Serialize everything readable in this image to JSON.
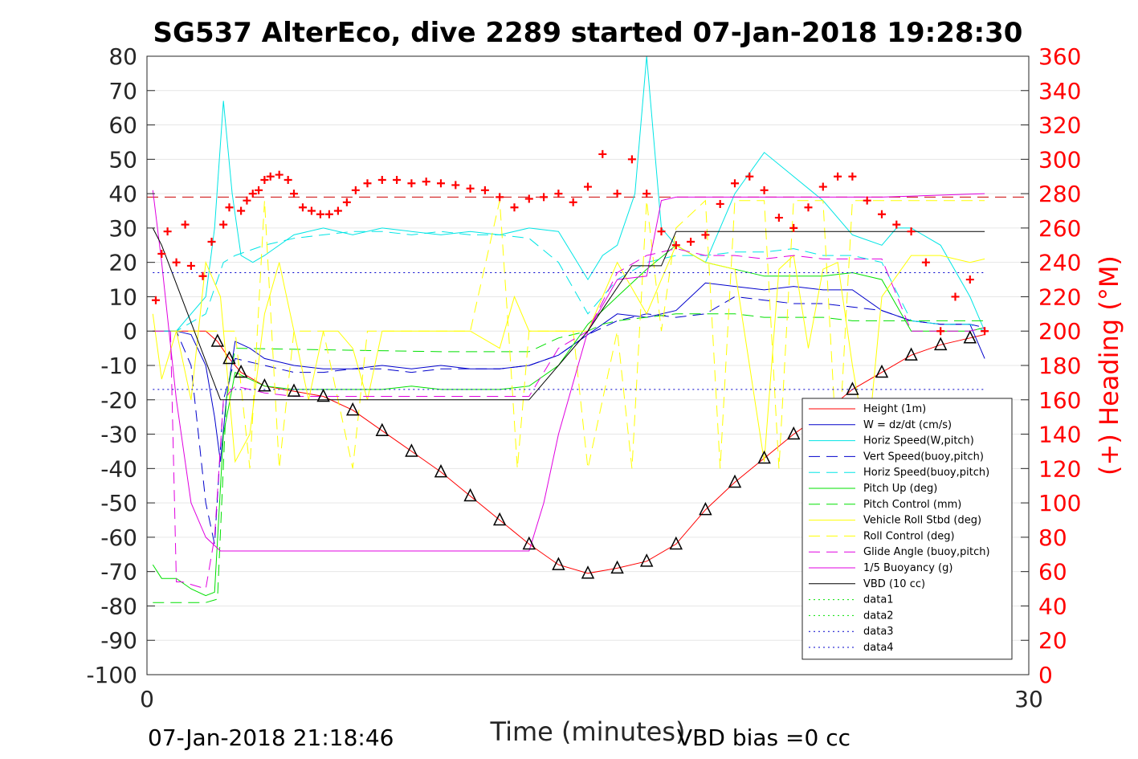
{
  "chart_data": {
    "type": "line",
    "title": "SG537 AlterEco, dive 2289 started 07-Jan-2018 19:28:30",
    "xlabel": "Time (minutes)",
    "ylabel_right": "(+) Heading (°M)",
    "xlim": [
      0,
      30
    ],
    "ylim_left": [
      -100,
      80
    ],
    "ylim_right": [
      0,
      360
    ],
    "x_ticks": [
      "0",
      "30"
    ],
    "y_ticks_left": [
      "80",
      "70",
      "60",
      "50",
      "40",
      "30",
      "20",
      "10",
      "0",
      "-10",
      "-20",
      "-30",
      "-40",
      "-50",
      "-60",
      "-70",
      "-80",
      "-90",
      "-100"
    ],
    "y_ticks_right": [
      "360",
      "340",
      "320",
      "300",
      "280",
      "260",
      "240",
      "220",
      "200",
      "180",
      "160",
      "140",
      "120",
      "100",
      "80",
      "60",
      "40",
      "20",
      "0"
    ],
    "grid": true,
    "legend_position": "lower-right",
    "footer_left": "07-Jan-2018 21:18:46",
    "footer_right": "VBD bias =0 cc",
    "series": [
      {
        "name": "Height (1m)",
        "color": "#ff0000",
        "style": "solid",
        "x": [
          0.2,
          2,
          2.4,
          2.8,
          3.2,
          4,
          5,
          6,
          7,
          8,
          9,
          10,
          11,
          12,
          13,
          14,
          15,
          16,
          17,
          18,
          19,
          20,
          21,
          22,
          23,
          24,
          25,
          26,
          27,
          28,
          28.5
        ],
        "y": [
          0,
          0,
          -3,
          -8,
          -12,
          -16,
          -17.5,
          -19,
          -23,
          -29,
          -35,
          -41,
          -48,
          -55,
          -62,
          -68,
          -70.5,
          -69,
          -67,
          -62,
          -52,
          -44,
          -37,
          -30,
          -24,
          -17,
          -12,
          -7,
          -4,
          -2,
          -1
        ]
      },
      {
        "name": "W = dz/dt (cm/s)",
        "color": "#0000cc",
        "style": "solid",
        "x": [
          0.2,
          1,
          1.5,
          2,
          2.3,
          2.5,
          2.7,
          3,
          3.5,
          4,
          5,
          6,
          7,
          8,
          9,
          10,
          11,
          12,
          13,
          14,
          15,
          15.5,
          16,
          17,
          18,
          19,
          20,
          21,
          22,
          23,
          24,
          25,
          26,
          27,
          28,
          28.5
        ],
        "y": [
          0,
          0,
          -1,
          -10,
          -25,
          -38,
          -20,
          -3,
          -5,
          -8,
          -10,
          -11,
          -11,
          -10,
          -11,
          -10,
          -11,
          -11,
          -10,
          -7,
          -1,
          2,
          5,
          4,
          6,
          14,
          13,
          12,
          13,
          12,
          12,
          6,
          3,
          2,
          2,
          -8
        ]
      },
      {
        "name": "Horiz Speed(W,pitch)",
        "color": "#00e5e5",
        "style": "solid",
        "x": [
          0.2,
          1,
          2,
          2.3,
          2.6,
          2.9,
          3.2,
          3.6,
          4,
          5,
          6,
          7,
          8,
          9,
          10,
          11,
          12,
          13,
          14,
          15,
          15.5,
          16,
          16.6,
          17,
          17.5,
          18,
          19,
          20,
          21,
          22,
          23,
          24,
          25,
          25.5,
          26,
          27,
          28,
          28.5
        ],
        "y": [
          0,
          0,
          10,
          30,
          67,
          40,
          22,
          20,
          22,
          28,
          30,
          28,
          30,
          29,
          28,
          29,
          28,
          30,
          29,
          15,
          22,
          25,
          40,
          80,
          30,
          25,
          20,
          40,
          52,
          45,
          38,
          28,
          25,
          30,
          30,
          25,
          10,
          0
        ]
      },
      {
        "name": "Vert Speed(buoy,pitch)",
        "color": "#0000cc",
        "style": "dashed",
        "x": [
          0.2,
          1,
          1.5,
          2,
          2.3,
          2.6,
          3,
          4,
          5,
          6,
          7,
          8,
          9,
          10,
          11,
          12,
          13,
          14,
          15,
          16,
          17,
          18,
          19,
          20,
          21,
          22,
          23,
          24,
          25,
          26,
          27,
          28,
          28.5
        ],
        "y": [
          0,
          0,
          -10,
          -50,
          -62,
          -20,
          -8,
          -10,
          -12,
          -12,
          -11,
          -11,
          -12,
          -11,
          -11,
          -11,
          -10,
          -7,
          -1,
          3,
          5,
          4,
          5,
          10,
          9,
          8,
          8,
          7,
          6,
          3,
          2,
          2,
          1
        ]
      },
      {
        "name": "Horiz Speed(buoy,pitch)",
        "color": "#00e5e5",
        "style": "dashed",
        "x": [
          0.2,
          1,
          2,
          2.6,
          3,
          4,
          5,
          6,
          7,
          8,
          9,
          10,
          11,
          12,
          13,
          14,
          15,
          16,
          17,
          18,
          19,
          20,
          21,
          22,
          23,
          24,
          25,
          26,
          27,
          28,
          28.5
        ],
        "y": [
          0,
          0,
          5,
          20,
          22,
          25,
          27,
          28,
          29,
          29,
          28,
          29,
          28,
          28,
          27,
          20,
          5,
          15,
          20,
          22,
          22,
          23,
          23,
          24,
          22,
          22,
          20,
          3,
          2,
          2,
          0
        ]
      },
      {
        "name": "Pitch Up (deg)",
        "color": "#00e000",
        "style": "solid",
        "x": [
          0.2,
          0.5,
          1,
          1.5,
          2,
          2.3,
          2.6,
          3,
          3.5,
          4,
          5,
          6,
          7,
          8,
          9,
          10,
          11,
          12,
          13,
          14,
          15,
          16,
          17,
          18,
          19,
          20,
          21,
          22,
          23,
          24,
          25,
          26,
          27,
          28,
          28.5
        ],
        "y": [
          -68,
          -72,
          -72,
          -75,
          -77,
          -76,
          -30,
          -12,
          -14,
          -16,
          -17,
          -17,
          -17,
          -17,
          -16,
          -17,
          -17,
          -17,
          -16,
          -10,
          2,
          10,
          18,
          25,
          20,
          18,
          16,
          16,
          16,
          17,
          15,
          0,
          0,
          0,
          1
        ]
      },
      {
        "name": "Pitch Control (mm)",
        "color": "#00e000",
        "style": "dashed",
        "x": [
          0.2,
          2,
          2.4,
          2.7,
          3,
          10,
          12,
          13,
          13.5,
          14,
          15,
          15.5,
          16,
          18,
          20,
          21,
          22,
          23,
          24,
          25,
          26,
          28,
          28.5
        ],
        "y": [
          -79,
          -79,
          -78,
          -20,
          -5,
          -6,
          -6,
          -6,
          -4,
          -2,
          0,
          2,
          3,
          5,
          5,
          4,
          4,
          4,
          3,
          3,
          3,
          3,
          3
        ]
      },
      {
        "name": "Vehicle Roll Stbd (deg)",
        "color": "#ffff00",
        "style": "solid",
        "x": [
          0.2,
          0.5,
          1,
          1.5,
          2,
          2.5,
          3,
          3.5,
          4,
          4.5,
          5,
          5.5,
          6,
          6.5,
          7,
          7.5,
          8,
          9,
          10,
          11,
          12,
          12.5,
          13,
          13.5,
          14,
          15,
          16,
          17,
          18,
          19,
          20,
          20.5,
          21,
          21.5,
          22,
          22.5,
          23,
          23.5,
          24,
          24.5,
          25,
          26,
          27,
          28,
          28.5
        ],
        "y": [
          5,
          -14,
          0,
          -20,
          20,
          10,
          -38,
          -30,
          5,
          20,
          0,
          -20,
          0,
          0,
          -5,
          -20,
          0,
          0,
          0,
          0,
          -5,
          10,
          0,
          0,
          0,
          0,
          20,
          5,
          25,
          20,
          18,
          -10,
          -38,
          18,
          22,
          -5,
          18,
          20,
          -10,
          -35,
          10,
          22,
          22,
          20,
          21
        ]
      },
      {
        "name": "Roll Control (deg)",
        "color": "#ffff00",
        "style": "dashed",
        "x": [
          0.2,
          3,
          3.5,
          4,
          4.5,
          5,
          6,
          7,
          7.5,
          8,
          10,
          11,
          12,
          12.3,
          12.6,
          13,
          13.5,
          14,
          14.5,
          15,
          16,
          16.5,
          17,
          17.5,
          18,
          19,
          19.5,
          20,
          21,
          21.5,
          22,
          23,
          23.5,
          24,
          25,
          26,
          27,
          28,
          28.5
        ],
        "y": [
          0,
          0,
          -40,
          38,
          -40,
          0,
          0,
          -40,
          0,
          0,
          0,
          0,
          38,
          0,
          -40,
          0,
          0,
          0,
          0,
          -40,
          0,
          -40,
          38,
          0,
          30,
          38,
          -40,
          38,
          38,
          -40,
          38,
          38,
          -40,
          38,
          38,
          38,
          38,
          38,
          38
        ]
      },
      {
        "name": "Glide Angle (buoy,pitch)",
        "color": "#e000e0",
        "style": "dashed",
        "x": [
          0.2,
          0.8,
          1,
          1.2,
          2,
          2.3,
          2.6,
          3,
          4,
          5,
          6,
          7,
          8,
          9,
          10,
          11,
          12,
          13,
          14,
          15,
          16,
          17,
          18,
          19,
          20,
          21,
          22,
          23,
          24,
          25,
          26,
          27,
          28,
          28.5
        ],
        "y": [
          0,
          0,
          -73,
          -73,
          -75,
          -60,
          -20,
          -16,
          -18,
          -19,
          -19,
          -19,
          -19,
          -19,
          -19,
          -19,
          -19,
          -19,
          -5,
          0,
          17,
          22,
          24,
          22,
          22,
          21,
          22,
          21,
          21,
          21,
          0,
          0,
          0,
          1
        ]
      },
      {
        "name": "1/5 Buoyancy (g)",
        "color": "#e000e0",
        "style": "solid",
        "x": [
          0.2,
          0.5,
          1,
          1.5,
          2,
          2.5,
          13,
          13.5,
          14,
          15,
          16,
          17,
          17.5,
          18,
          20,
          25,
          28.5
        ],
        "y": [
          41,
          20,
          -20,
          -50,
          -60,
          -64,
          -64,
          -50,
          -30,
          0,
          15,
          16,
          38,
          39,
          39,
          39,
          40
        ]
      },
      {
        "name": "VBD (10 cc)",
        "color": "#000000",
        "style": "solid",
        "x": [
          0.2,
          0.5,
          2.5,
          13,
          15,
          16.5,
          17.5,
          18,
          28.5
        ],
        "y": [
          30,
          25,
          -20,
          -20,
          0,
          19,
          19,
          29,
          29
        ]
      },
      {
        "name": "data1",
        "color": "#00e000",
        "style": "dotted",
        "x": [],
        "y": []
      },
      {
        "name": "data2",
        "color": "#00e000",
        "style": "dotted",
        "x": [],
        "y": []
      },
      {
        "name": "data3",
        "color": "#0000cc",
        "style": "dotted",
        "x": [
          0.2,
          28.5
        ],
        "y": [
          17,
          17
        ]
      },
      {
        "name": "data4",
        "color": "#0000cc",
        "style": "dotted",
        "x": [
          0.2,
          28.5
        ],
        "y": [
          -17,
          -17
        ]
      }
    ],
    "heading_target": {
      "color": "#cc0000",
      "style": "dashed",
      "y_right": 278
    },
    "heading_points": {
      "color": "#ff0000",
      "marker": "+",
      "x": [
        0.3,
        0.5,
        0.7,
        1,
        1.3,
        1.5,
        1.9,
        2.2,
        2.6,
        2.8,
        3.2,
        3.4,
        3.6,
        3.8,
        4,
        4.2,
        4.5,
        4.8,
        5,
        5.3,
        5.6,
        5.9,
        6.2,
        6.5,
        6.8,
        7.1,
        7.5,
        8,
        8.5,
        9,
        9.5,
        10,
        10.5,
        11,
        11.5,
        12,
        12.5,
        13,
        13.5,
        14,
        14.5,
        15,
        15.5,
        16,
        16.5,
        17,
        17.5,
        18,
        18.5,
        19,
        19.5,
        20,
        20.5,
        21,
        21.5,
        22,
        22.5,
        23,
        23.5,
        24,
        24.5,
        25,
        25.5,
        26,
        26.5,
        27,
        27.5,
        28,
        28.5
      ],
      "y": [
        218,
        245,
        258,
        240,
        262,
        238,
        232,
        252,
        262,
        272,
        270,
        276,
        280,
        282,
        288,
        290,
        291,
        288,
        280,
        272,
        270,
        268,
        268,
        270,
        275,
        282,
        286,
        288,
        288,
        286,
        287,
        286,
        285,
        283,
        282,
        278,
        272,
        277,
        278,
        280,
        275,
        284,
        303,
        280,
        300,
        280,
        258,
        250,
        252,
        256,
        274,
        286,
        290,
        282,
        266,
        260,
        272,
        284,
        290,
        290,
        276,
        268,
        262,
        258,
        240,
        200,
        220,
        230,
        200
      ]
    }
  }
}
